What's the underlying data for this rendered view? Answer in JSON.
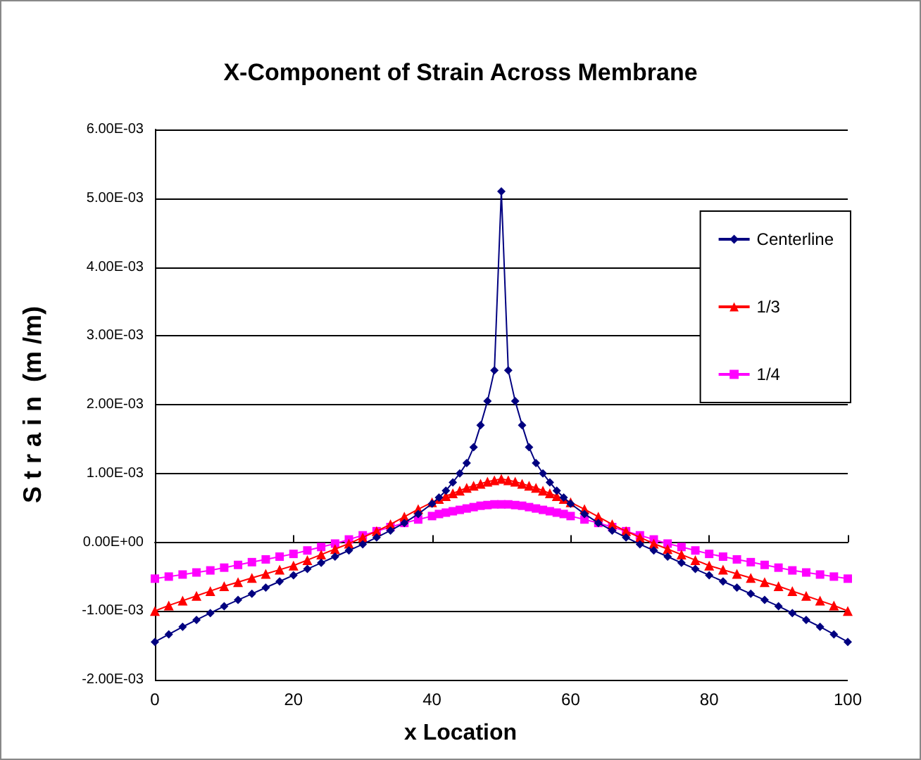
{
  "chart_data": {
    "type": "line",
    "title": "X-Component of Strain Across Membrane",
    "xlabel": "x Location",
    "ylabel": "S t r a i n  (m /m)",
    "x": [
      0,
      2,
      4,
      6,
      8,
      10,
      12,
      14,
      16,
      18,
      20,
      22,
      24,
      26,
      28,
      30,
      32,
      34,
      36,
      38,
      40,
      41,
      42,
      43,
      44,
      45,
      46,
      47,
      48,
      49,
      50,
      51,
      52,
      53,
      54,
      55,
      56,
      57,
      58,
      59,
      60,
      62,
      64,
      66,
      68,
      70,
      72,
      74,
      76,
      78,
      80,
      82,
      84,
      86,
      88,
      90,
      92,
      94,
      96,
      98,
      100
    ],
    "series": [
      {
        "name": "Centerline",
        "color": "#000080",
        "marker": "diamond",
        "values": [
          -0.00145,
          -0.00134,
          -0.00123,
          -0.00113,
          -0.00103,
          -0.00093,
          -0.00084,
          -0.00075,
          -0.00066,
          -0.00057,
          -0.00048,
          -0.00039,
          -0.0003,
          -0.00021,
          -0.00012,
          -3e-05,
          7e-05,
          0.00017,
          0.00028,
          0.00041,
          0.00056,
          0.00065,
          0.00075,
          0.00087,
          0.001,
          0.00115,
          0.00138,
          0.0017,
          0.00205,
          0.0025,
          0.0051,
          0.0025,
          0.00205,
          0.0017,
          0.00138,
          0.00115,
          0.001,
          0.00087,
          0.00075,
          0.00065,
          0.00056,
          0.00041,
          0.00028,
          0.00017,
          7e-05,
          -3e-05,
          -0.00012,
          -0.00021,
          -0.0003,
          -0.00039,
          -0.00048,
          -0.00057,
          -0.00066,
          -0.00075,
          -0.00084,
          -0.00093,
          -0.00103,
          -0.00113,
          -0.00123,
          -0.00134,
          -0.00145
        ]
      },
      {
        "name": "1/3",
        "color": "#ff0000",
        "marker": "triangle",
        "values": [
          -0.001,
          -0.00092,
          -0.00085,
          -0.00078,
          -0.00071,
          -0.00064,
          -0.00058,
          -0.00052,
          -0.00046,
          -0.0004,
          -0.00034,
          -0.00026,
          -0.00018,
          -0.0001,
          -2e-05,
          7e-05,
          0.00016,
          0.00026,
          0.00037,
          0.00048,
          0.00058,
          0.00063,
          0.00067,
          0.00071,
          0.00075,
          0.00079,
          0.00082,
          0.00085,
          0.00088,
          0.0009,
          0.00092,
          0.0009,
          0.00088,
          0.00085,
          0.00082,
          0.00079,
          0.00075,
          0.00071,
          0.00067,
          0.00063,
          0.00058,
          0.00048,
          0.00037,
          0.00026,
          0.00016,
          7e-05,
          -2e-05,
          -0.0001,
          -0.00018,
          -0.00026,
          -0.00034,
          -0.0004,
          -0.00046,
          -0.00052,
          -0.00058,
          -0.00064,
          -0.00071,
          -0.00078,
          -0.00085,
          -0.00092,
          -0.001
        ]
      },
      {
        "name": "1/4",
        "color": "#ff00ff",
        "marker": "square",
        "values": [
          -0.00053,
          -0.0005,
          -0.00047,
          -0.00044,
          -0.00041,
          -0.00037,
          -0.00033,
          -0.00029,
          -0.00025,
          -0.00021,
          -0.00017,
          -0.00012,
          -7e-05,
          -2e-05,
          4e-05,
          0.0001,
          0.00016,
          0.00022,
          0.00028,
          0.00033,
          0.00038,
          0.00041,
          0.00043,
          0.00045,
          0.00047,
          0.00049,
          0.00051,
          0.00053,
          0.00054,
          0.00055,
          0.00055,
          0.00055,
          0.00054,
          0.00053,
          0.00051,
          0.00049,
          0.00047,
          0.00045,
          0.00043,
          0.00041,
          0.00038,
          0.00033,
          0.00028,
          0.00022,
          0.00016,
          0.0001,
          4e-05,
          -2e-05,
          -7e-05,
          -0.00012,
          -0.00017,
          -0.00021,
          -0.00025,
          -0.00029,
          -0.00033,
          -0.00037,
          -0.00041,
          -0.00044,
          -0.00047,
          -0.0005,
          -0.00053
        ]
      }
    ],
    "xlim": [
      0,
      100
    ],
    "xticks": [
      0,
      20,
      40,
      60,
      80,
      100
    ],
    "ylim": [
      -0.002,
      0.006
    ],
    "yticks": [
      {
        "value": -0.002,
        "label": "-2.00E-03"
      },
      {
        "value": -0.001,
        "label": "-1.00E-03"
      },
      {
        "value": 0,
        "label": "0.00E+00"
      },
      {
        "value": 0.001,
        "label": "1.00E-03"
      },
      {
        "value": 0.002,
        "label": "2.00E-03"
      },
      {
        "value": 0.003,
        "label": "3.00E-03"
      },
      {
        "value": 0.004,
        "label": "4.00E-03"
      },
      {
        "value": 0.005,
        "label": "5.00E-03"
      },
      {
        "value": 0.006,
        "label": "6.00E-03"
      }
    ],
    "grid": "y",
    "legend": "top right",
    "line_style": "solid"
  }
}
